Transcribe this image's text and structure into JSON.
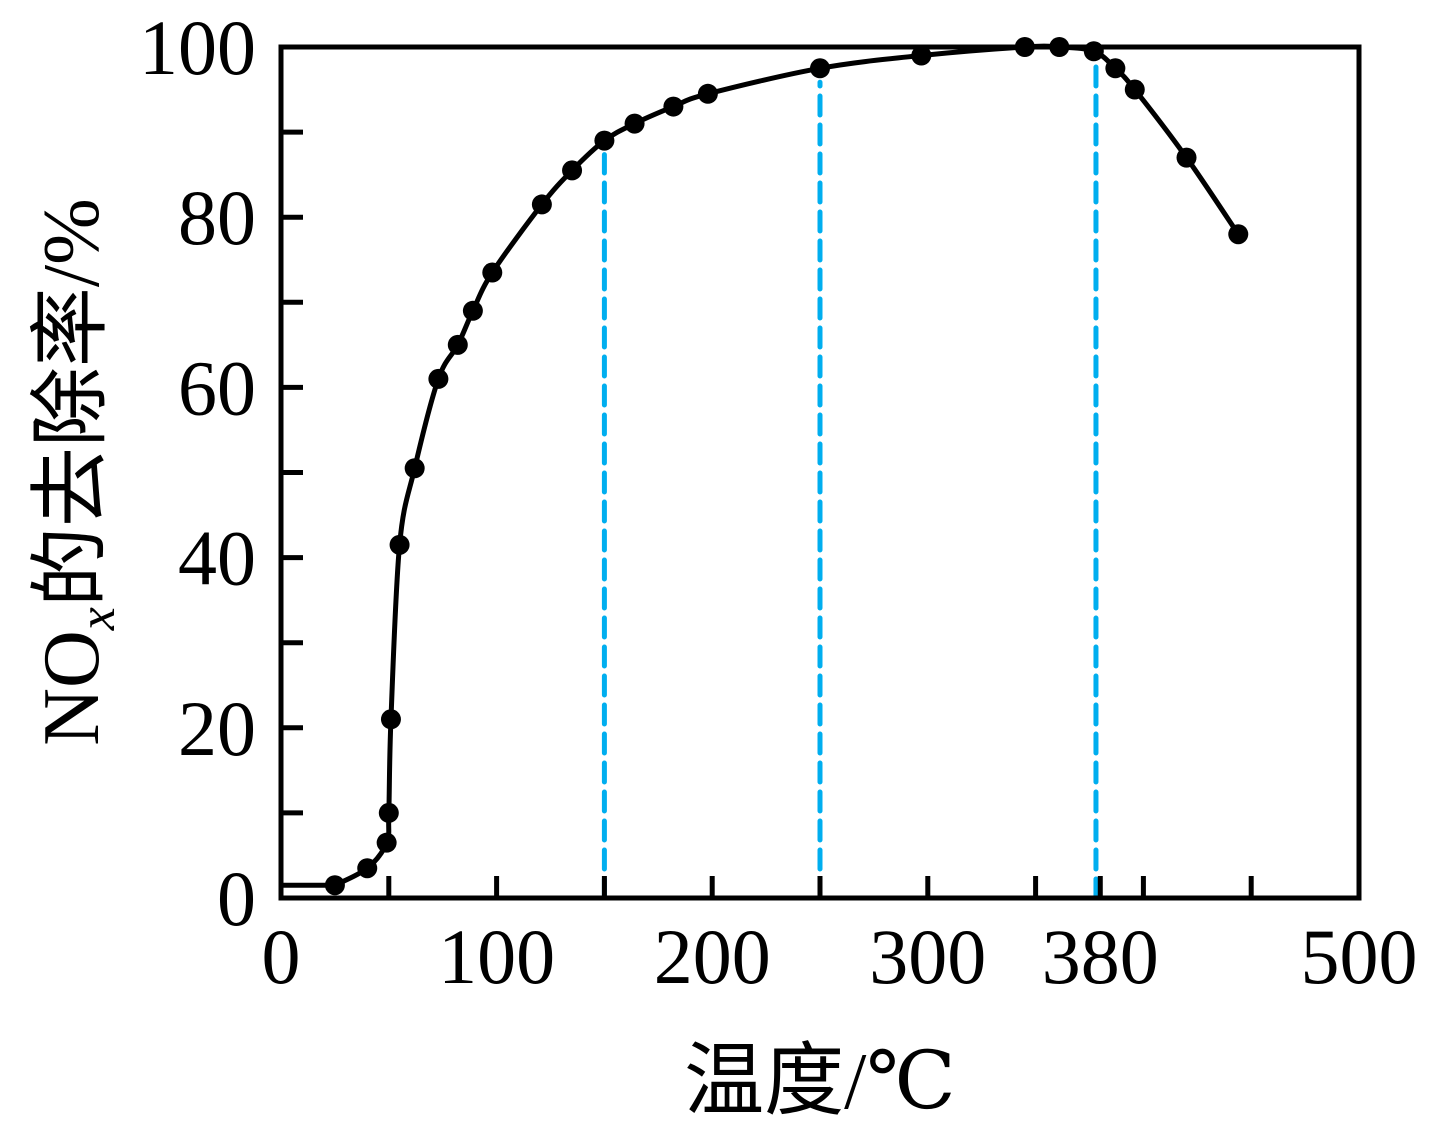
{
  "chart_data": {
    "type": "line",
    "title": "",
    "xlabel": "温度/℃",
    "ylabel_prefix": "NO",
    "ylabel_subscript": "x",
    "ylabel_suffix": "的去除率/%",
    "xlim": [
      0,
      500
    ],
    "ylim": [
      0,
      100
    ],
    "x_ticks": [
      0,
      100,
      200,
      300,
      380,
      500
    ],
    "x_tick_labels": [
      "0",
      "100",
      "200",
      "300",
      "380",
      "500"
    ],
    "x_minor_ticks": [
      50,
      150,
      250,
      350,
      400,
      450
    ],
    "y_ticks": [
      0,
      20,
      40,
      60,
      80,
      100
    ],
    "y_tick_labels": [
      "0",
      "20",
      "40",
      "60",
      "80",
      "100"
    ],
    "y_minor_ticks": [
      10,
      30,
      50,
      70,
      90
    ],
    "grid": false,
    "legend": "none",
    "series": [
      {
        "color": "#000000",
        "marker": "circle",
        "x": [
          25,
          40,
          49,
          50,
          51,
          55,
          62,
          73,
          82,
          89,
          98,
          121,
          135,
          150,
          164,
          182,
          198,
          250,
          297,
          345,
          361,
          377,
          387,
          396,
          420,
          444
        ],
        "y": [
          1.5,
          3.5,
          6.5,
          10,
          21,
          41.5,
          50.5,
          61,
          65,
          69,
          73.5,
          81.5,
          85.5,
          89,
          91,
          93,
          94.5,
          97.5,
          99,
          100,
          100,
          99.5,
          97.5,
          95,
          87,
          78
        ]
      }
    ],
    "reference_lines": {
      "color": "#00aeef",
      "style": "dashed",
      "x": [
        150,
        250,
        378
      ]
    }
  }
}
